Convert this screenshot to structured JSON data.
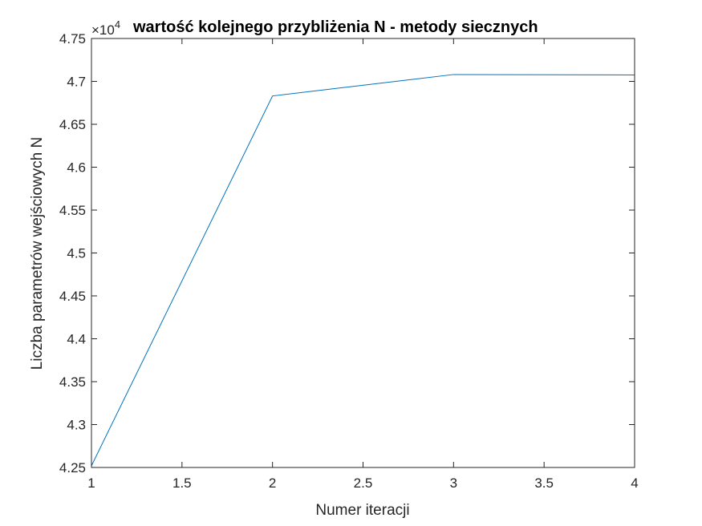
{
  "chart_data": {
    "type": "line",
    "title": "wartość kolejnego przybliżenia N - metody siecznych",
    "xlabel": "Numer iteracji",
    "ylabel": "Liczba parametrów wejściowych N",
    "y_exponent_prefix": "×10",
    "y_exponent_power": "4",
    "y_scale": 10000,
    "xlim": [
      1,
      4
    ],
    "ylim": [
      42500,
      47500
    ],
    "x_ticks": [
      1,
      1.5,
      2,
      2.5,
      3,
      3.5,
      4
    ],
    "x_tick_labels": [
      "1",
      "1.5",
      "2",
      "2.5",
      "3",
      "3.5",
      "4"
    ],
    "y_ticks": [
      42500,
      43000,
      43500,
      44000,
      44500,
      45000,
      45500,
      46000,
      46500,
      47000,
      47500
    ],
    "y_tick_labels": [
      "4.25",
      "4.3",
      "4.35",
      "4.4",
      "4.45",
      "4.5",
      "4.55",
      "4.6",
      "4.65",
      "4.7",
      "4.75"
    ],
    "grid": false,
    "series": [
      {
        "x": [
          1,
          2,
          3,
          4
        ],
        "y": [
          42520,
          46830,
          47080,
          47075
        ],
        "color": "#0072BD"
      }
    ]
  }
}
